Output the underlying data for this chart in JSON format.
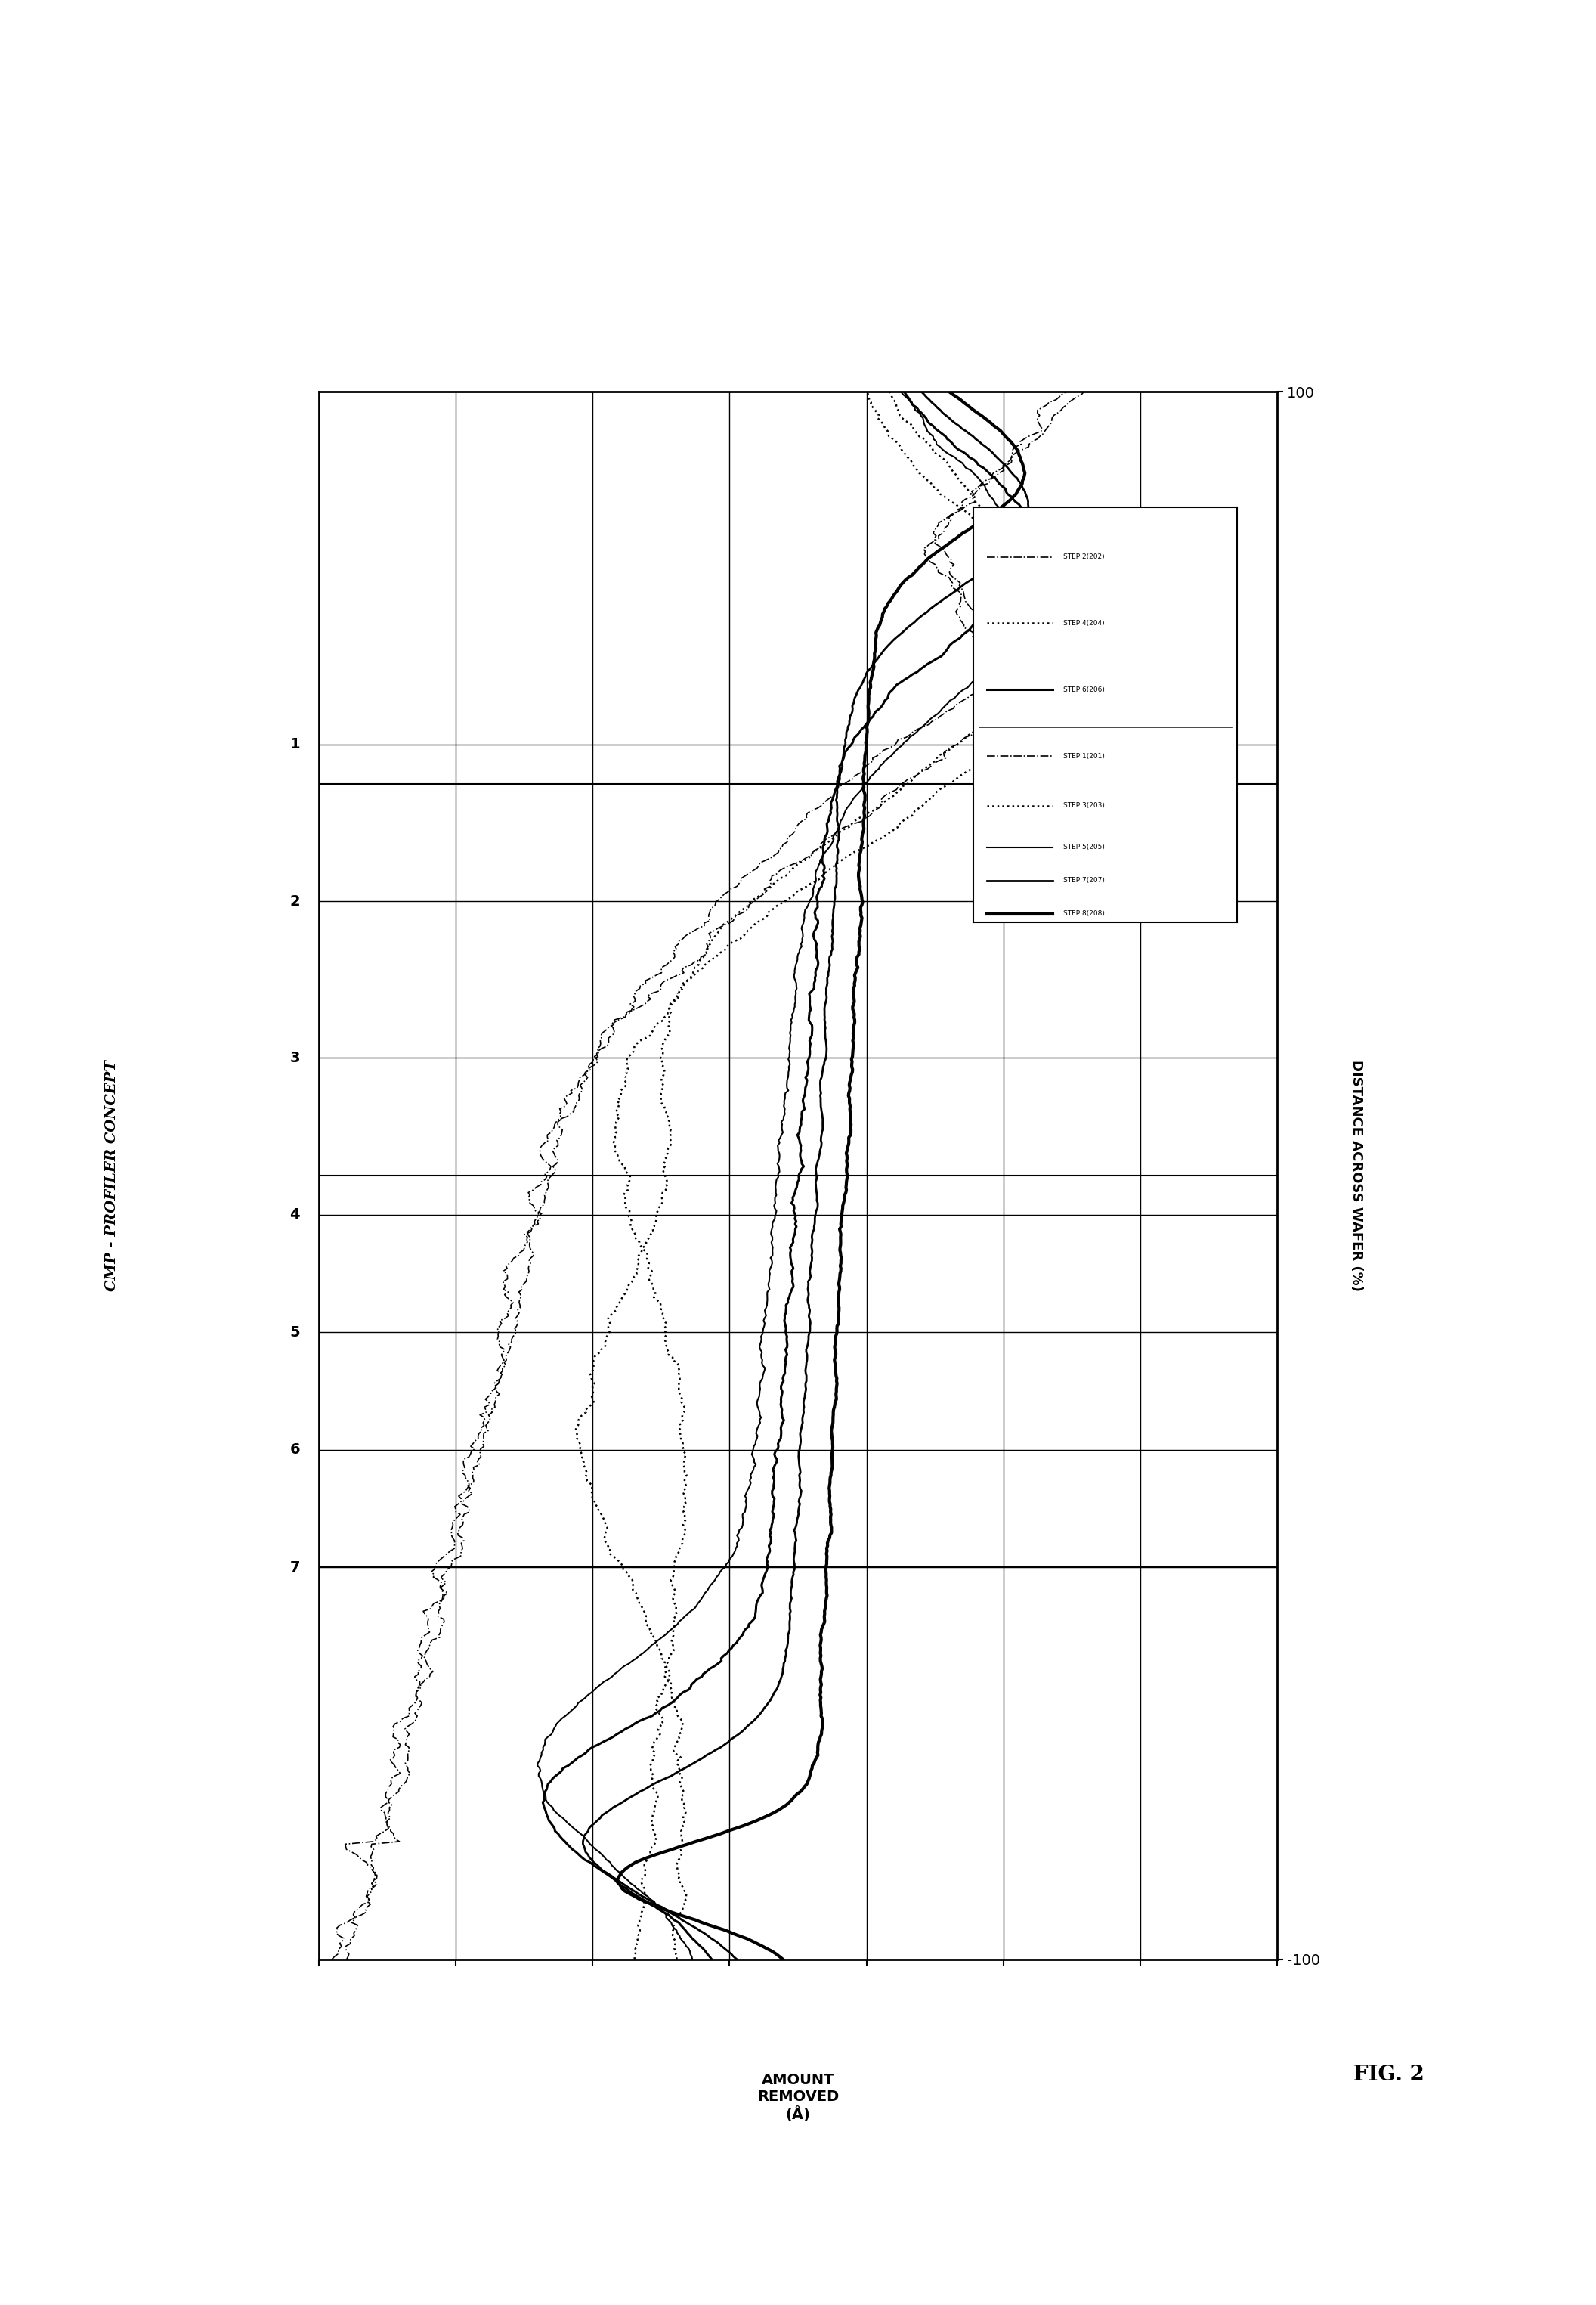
{
  "title": "CMP - PROFILER CONCEPT",
  "xlabel": "AMOUNT\nREMOVED\n(Å)",
  "ylabel_right": "DISTANCE ACROSS WAFER (%)",
  "fig_label": "FIG. 2",
  "ylim": [
    -100,
    100
  ],
  "xlim": [
    0,
    10000
  ],
  "ytick_labels": [
    "100",
    "-100"
  ],
  "ytick_positions": [
    100,
    -100
  ],
  "zone_labels": [
    "1",
    "2",
    "3",
    "4",
    "5",
    "6",
    "7"
  ],
  "background_color": "#ffffff",
  "line_color": "#000000",
  "legend_top": [
    {
      "label": "STEP 2(202)",
      "ls": "-.",
      "lw": 1.2
    },
    {
      "label": "STEP 4(204)",
      "ls": ":",
      "lw": 1.8
    },
    {
      "label": "STEP 6(206)",
      "ls": "-",
      "lw": 2.2
    }
  ],
  "legend_bot": [
    {
      "label": "STEP 1(201)",
      "ls": "-.",
      "lw": 1.2
    },
    {
      "label": "STEP 3(203)",
      "ls": ":",
      "lw": 1.8
    },
    {
      "label": "STEP 5(205)",
      "ls": "-",
      "lw": 1.5
    },
    {
      "label": "STEP 7(207)",
      "ls": "-",
      "lw": 2.0
    },
    {
      "label": "STEP 8(208)",
      "ls": "-",
      "lw": 3.0
    }
  ]
}
